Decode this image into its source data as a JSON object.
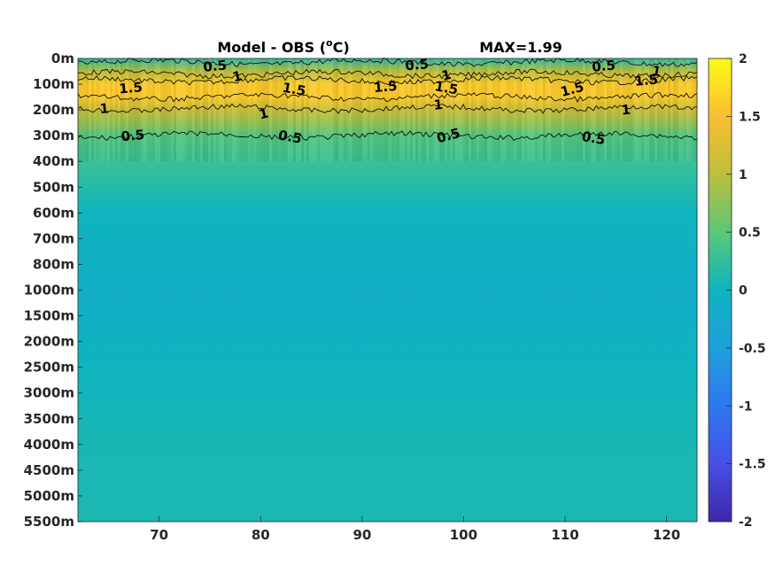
{
  "chart_data": {
    "type": "heatmap",
    "title": "Model - OBS (°C)",
    "title_main": "Model - OBS (",
    "title_sup": "o",
    "title_end": "C)",
    "annotation": "MAX=1.99",
    "xlabel": "",
    "ylabel": "",
    "xlim": [
      62,
      123
    ],
    "x_ticks": [
      70,
      80,
      90,
      100,
      110,
      120
    ],
    "y_ticks": [
      "0m",
      "100m",
      "200m",
      "300m",
      "400m",
      "500m",
      "600m",
      "700m",
      "800m",
      "1000m",
      "1500m",
      "2000m",
      "2500m",
      "3000m",
      "3500m",
      "4000m",
      "4500m",
      "5000m",
      "5500m"
    ],
    "colorbar": {
      "range": [
        -2,
        2
      ],
      "ticks": [
        "2",
        "1.5",
        "1",
        "0.5",
        "0",
        "-0.5",
        "-1",
        "-1.5",
        "-2"
      ],
      "colormap": "parula"
    },
    "grid": false,
    "depth_profile": [
      {
        "depth": "0m",
        "value": 0.2
      },
      {
        "depth": "50m",
        "value": 1.0
      },
      {
        "depth": "100m",
        "value": 1.6
      },
      {
        "depth": "150m",
        "value": 1.6
      },
      {
        "depth": "200m",
        "value": 1.1
      },
      {
        "depth": "250m",
        "value": 0.8
      },
      {
        "depth": "300m",
        "value": 0.45
      },
      {
        "depth": "400m",
        "value": 0.3
      },
      {
        "depth": "500m",
        "value": 0.15
      },
      {
        "depth": "600m",
        "value": 0.0
      },
      {
        "depth": "700m",
        "value": -0.05
      },
      {
        "depth": "800m",
        "value": -0.1
      },
      {
        "depth": "1000m",
        "value": -0.15
      },
      {
        "depth": "1500m",
        "value": -0.12
      },
      {
        "depth": "2000m",
        "value": -0.05
      },
      {
        "depth": "2500m",
        "value": 0.0
      },
      {
        "depth": "3000m",
        "value": 0.02
      },
      {
        "depth": "3500m",
        "value": 0.05
      },
      {
        "depth": "4000m",
        "value": 0.07
      },
      {
        "depth": "4500m",
        "value": 0.08
      },
      {
        "depth": "5000m",
        "value": 0.08
      },
      {
        "depth": "5500m",
        "value": 0.1
      }
    ],
    "contour_labels": [
      {
        "text": "0.5",
        "x": 75.5,
        "depth": "30m"
      },
      {
        "text": "1",
        "x": 77.7,
        "depth": "70m"
      },
      {
        "text": "1.5",
        "x": 67.2,
        "depth": "115m"
      },
      {
        "text": "1.5",
        "x": 83.3,
        "depth": "120m"
      },
      {
        "text": "1",
        "x": 64.6,
        "depth": "195m"
      },
      {
        "text": "1",
        "x": 80.3,
        "depth": "215m"
      },
      {
        "text": "0.5",
        "x": 67.4,
        "depth": "300m"
      },
      {
        "text": "0.5",
        "x": 82.9,
        "depth": "305m"
      },
      {
        "text": "0.5",
        "x": 95.4,
        "depth": "25m"
      },
      {
        "text": "1",
        "x": 98.3,
        "depth": "65m"
      },
      {
        "text": "1.5",
        "x": 92.3,
        "depth": "110m"
      },
      {
        "text": "1.5",
        "x": 98.3,
        "depth": "115m"
      },
      {
        "text": "1",
        "x": 97.5,
        "depth": "180m"
      },
      {
        "text": "0.5",
        "x": 98.5,
        "depth": "300m"
      },
      {
        "text": "0.5",
        "x": 113.8,
        "depth": "30m"
      },
      {
        "text": "1",
        "x": 119.0,
        "depth": "50m"
      },
      {
        "text": "1.5",
        "x": 118.0,
        "depth": "85m"
      },
      {
        "text": "1.5",
        "x": 110.7,
        "depth": "120m"
      },
      {
        "text": "1",
        "x": 116.0,
        "depth": "200m"
      },
      {
        "text": "0.5",
        "x": 112.8,
        "depth": "310m"
      }
    ]
  }
}
